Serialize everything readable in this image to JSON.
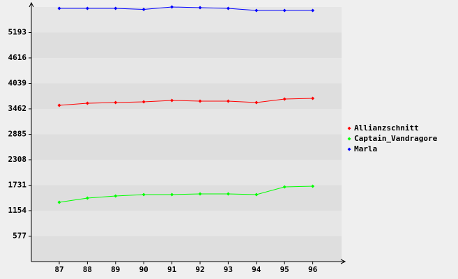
{
  "chart_data": {
    "type": "line",
    "categories": [
      "87",
      "88",
      "89",
      "90",
      "91",
      "92",
      "93",
      "94",
      "95",
      "96"
    ],
    "series": [
      {
        "name": "Allianzschnitt",
        "color": "#ff0000",
        "values": [
          3541,
          3588,
          3604,
          3620,
          3652,
          3636,
          3636,
          3604,
          3683,
          3699
        ]
      },
      {
        "name": "Captain_Vandragore",
        "color": "#00ff00",
        "values": [
          1344,
          1439,
          1486,
          1518,
          1518,
          1533,
          1533,
          1518,
          1691,
          1707
        ]
      },
      {
        "name": "Marla",
        "color": "#0000ff",
        "values": [
          5738,
          5738,
          5738,
          5715,
          5770,
          5754,
          5738,
          5691,
          5691,
          5691
        ]
      }
    ],
    "ylim": [
      0,
      5770
    ],
    "yticks": [
      577,
      1154,
      1731,
      2308,
      2885,
      3462,
      4039,
      4616,
      5193
    ],
    "grid": true,
    "legend": "right"
  }
}
